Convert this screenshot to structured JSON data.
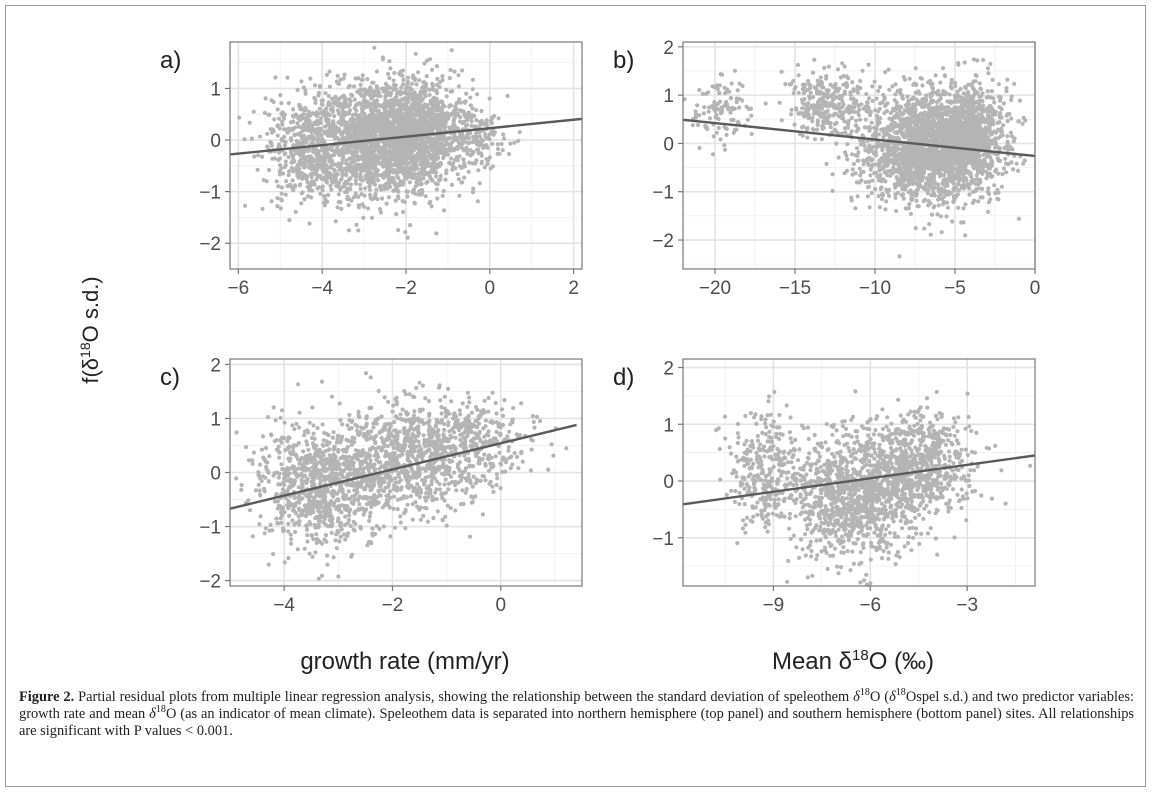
{
  "figure": {
    "y_label": "f(δ18O s.d.)",
    "caption_label": "Figure 2.",
    "caption_text": "Partial residual plots from multiple linear regression analysis, showing the relationship between the standard deviation of speleothem δ18O (δ18Ospel s.d.) and two predictor variables: growth rate and mean δ18O (as an indicator of mean climate). Speleothem data is separated into northern hemisphere (top panel) and southern hemisphere (bottom panel) sites. All relationships are significant with P values < 0.001.",
    "x_label_left": "growth rate (mm/yr)",
    "x_label_right": "Mean δ18O (‰)"
  },
  "colors": {
    "points": "#b4b4b4",
    "fit_line": "#5a5a5a",
    "grid_major": "#e3e3e3",
    "grid_minor": "#f1f1f1",
    "panel_border": "#777777",
    "tick_text": "#4d4d4d"
  },
  "chart_data": [
    {
      "type": "scatter",
      "panel_label": "a)",
      "xlim": [
        -6.2,
        2.2
      ],
      "ylim": [
        -2.5,
        1.9
      ],
      "x_ticks": [
        -6,
        -4,
        -2,
        0,
        2
      ],
      "y_ticks": [
        -2,
        -1,
        0,
        1
      ],
      "fit_line": {
        "x": [
          -6.2,
          2.2
        ],
        "y": [
          -0.28,
          0.41
        ]
      },
      "point_clouds": [
        {
          "cx": -2.6,
          "cy": -0.05,
          "sx": 0.9,
          "sy": 0.55,
          "n": 1600
        },
        {
          "cx": -1.8,
          "cy": 0.25,
          "sx": 0.7,
          "sy": 0.45,
          "n": 900
        },
        {
          "cx": -4.3,
          "cy": -0.15,
          "sx": 0.55,
          "sy": 0.5,
          "n": 500
        },
        {
          "cx": -0.3,
          "cy": 0.05,
          "sx": 0.35,
          "sy": 0.3,
          "n": 120
        }
      ]
    },
    {
      "type": "scatter",
      "panel_label": "b)",
      "xlim": [
        -22,
        0
      ],
      "ylim": [
        -2.6,
        2.1
      ],
      "x_ticks": [
        -20,
        -15,
        -10,
        -5,
        0
      ],
      "y_ticks": [
        -2,
        -1,
        0,
        1,
        2
      ],
      "fit_line": {
        "x": [
          -22,
          0
        ],
        "y": [
          0.49,
          -0.26
        ]
      },
      "point_clouds": [
        {
          "cx": -7.0,
          "cy": -0.1,
          "sx": 2.0,
          "sy": 0.6,
          "n": 1800
        },
        {
          "cx": -4.0,
          "cy": 0.2,
          "sx": 1.2,
          "sy": 0.5,
          "n": 800
        },
        {
          "cx": -13.0,
          "cy": 0.8,
          "sx": 1.2,
          "sy": 0.35,
          "n": 280
        },
        {
          "cx": -19.5,
          "cy": 0.7,
          "sx": 0.9,
          "sy": 0.35,
          "n": 110
        }
      ]
    },
    {
      "type": "scatter",
      "panel_label": "c)",
      "xlim": [
        -5,
        1.5
      ],
      "ylim": [
        -2.1,
        2.1
      ],
      "x_ticks": [
        -4,
        -2,
        0
      ],
      "y_ticks": [
        -2,
        -1,
        0,
        1,
        2
      ],
      "fit_line": {
        "x": [
          -5,
          1.4
        ],
        "y": [
          -0.67,
          0.88
        ]
      },
      "point_clouds": [
        {
          "cx": -3.3,
          "cy": -0.2,
          "sx": 0.6,
          "sy": 0.55,
          "n": 900
        },
        {
          "cx": -1.8,
          "cy": 0.2,
          "sx": 0.6,
          "sy": 0.55,
          "n": 700
        },
        {
          "cx": -0.6,
          "cy": 0.6,
          "sx": 0.55,
          "sy": 0.4,
          "n": 350
        }
      ]
    },
    {
      "type": "scatter",
      "panel_label": "d)",
      "xlim": [
        -11.8,
        -0.9
      ],
      "ylim": [
        -1.85,
        2.15
      ],
      "x_ticks": [
        -9,
        -6,
        -3
      ],
      "y_ticks": [
        -1,
        0,
        1,
        2
      ],
      "fit_line": {
        "x": [
          -11.8,
          -0.9
        ],
        "y": [
          -0.41,
          0.45
        ]
      },
      "point_clouds": [
        {
          "cx": -6.6,
          "cy": -0.3,
          "sx": 1.0,
          "sy": 0.5,
          "n": 1000
        },
        {
          "cx": -4.6,
          "cy": 0.3,
          "sx": 0.9,
          "sy": 0.45,
          "n": 700
        },
        {
          "cx": -9.2,
          "cy": 0.2,
          "sx": 0.6,
          "sy": 0.5,
          "n": 300
        }
      ]
    }
  ]
}
